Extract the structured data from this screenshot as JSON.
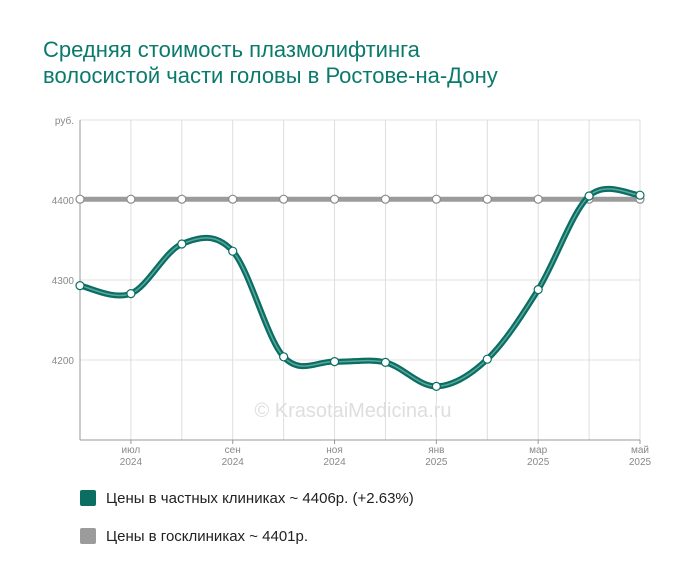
{
  "title_line1": "Средняя стоимость плазмолифтинга",
  "title_line2": "волосистой части головы в Ростове-на-Дону",
  "watermark": "© KrasotaiMedicina.ru",
  "legend": [
    {
      "label": "Цены в частных клиниках ~ 4406р. (+2.63%)",
      "color": "#0b6e63"
    },
    {
      "label": "Цены в госклиниках ~ 4401р.",
      "color": "#9b9b9b"
    }
  ],
  "chart_data": {
    "type": "line",
    "ylabel": "руб.",
    "ylim": [
      4100,
      4500
    ],
    "yticks": [
      4200,
      4300,
      4400
    ],
    "x_ticks": [
      {
        "month": "июл",
        "year": "2024",
        "index": 1
      },
      {
        "month": "сен",
        "year": "2024",
        "index": 3
      },
      {
        "month": "ноя",
        "year": "2024",
        "index": 5
      },
      {
        "month": "янв",
        "year": "2025",
        "index": 7
      },
      {
        "month": "мар",
        "year": "2025",
        "index": 9
      },
      {
        "month": "май",
        "year": "2025",
        "index": 11
      }
    ],
    "x": [
      "2024-06",
      "2024-07",
      "2024-08",
      "2024-09",
      "2024-10",
      "2024-11",
      "2024-12",
      "2025-01",
      "2025-02",
      "2025-03",
      "2025-04",
      "2025-05"
    ],
    "series": [
      {
        "name": "Цены в частных клиниках ~ 4406р. (+2.63%)",
        "color": "#0b6e63",
        "values": [
          4293,
          4283,
          4345,
          4336,
          4204,
          4198,
          4197,
          4167,
          4201,
          4288,
          4405,
          4406
        ]
      },
      {
        "name": "Цены в госклиниках ~ 4401р.",
        "color": "#9b9b9b",
        "values": [
          4401,
          4401,
          4401,
          4401,
          4401,
          4401,
          4401,
          4401,
          4401,
          4401,
          4401,
          4401
        ]
      }
    ],
    "grid": true,
    "legend_position": "bottom-left"
  }
}
